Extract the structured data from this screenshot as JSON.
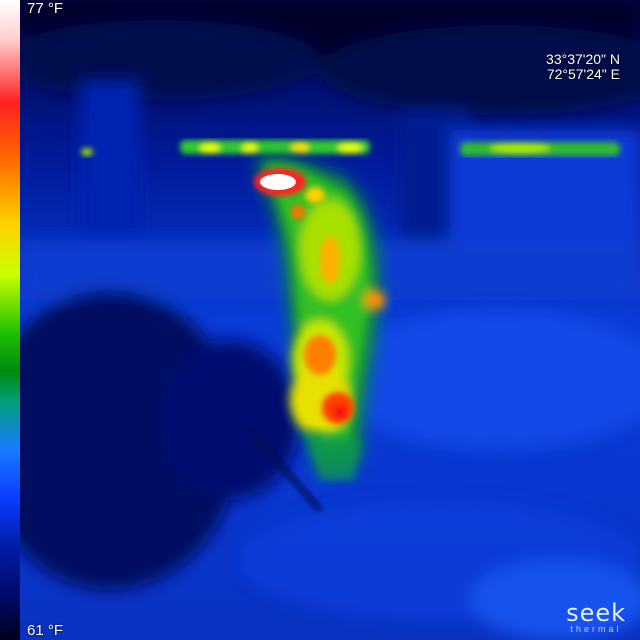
{
  "overlay": {
    "temp_max": "77 °F",
    "temp_min": "61 °F",
    "latitude": "33°37'20\" N",
    "longitude": "72°57'24\" E",
    "logo_main": "seek",
    "logo_sub": "thermal"
  },
  "palette": {
    "hot": "#ffffff",
    "warm": "#ff2020",
    "mid": "#ffd200",
    "cool": "#20c000",
    "cold": "#0a3cff",
    "coldest": "#000860"
  }
}
